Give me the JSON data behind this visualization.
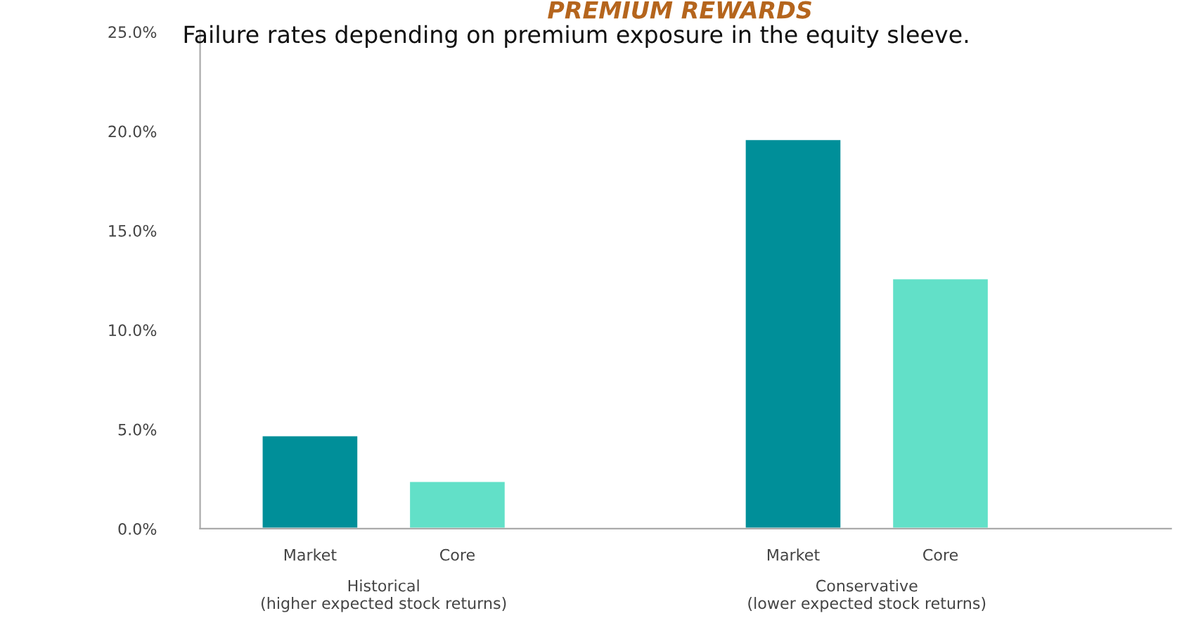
{
  "chart_data": {
    "type": "bar",
    "title": "PREMIUM REWARDS",
    "subtitle": "Failure rates depending on premium exposure in the equity sleeve.",
    "categories": [
      "Historical\n(higher expected stock returns)",
      "Conservative\n(lower expected stock returns)"
    ],
    "series": [
      {
        "name": "Market",
        "color": "#008f99",
        "values": [
          4.7,
          19.6
        ]
      },
      {
        "name": "Core",
        "color": "#62e0c8",
        "values": [
          2.4,
          12.6
        ]
      }
    ],
    "ylim": [
      0,
      25
    ],
    "yticks": [
      {
        "value": 0,
        "label": "0.0%"
      },
      {
        "value": 5,
        "label": "5.0%"
      },
      {
        "value": 10,
        "label": "10.0%"
      },
      {
        "value": 15,
        "label": "15.0%"
      },
      {
        "value": 20,
        "label": "20.0%"
      },
      {
        "value": 25,
        "label": "25.0%"
      }
    ],
    "grid": false,
    "legend": false
  }
}
